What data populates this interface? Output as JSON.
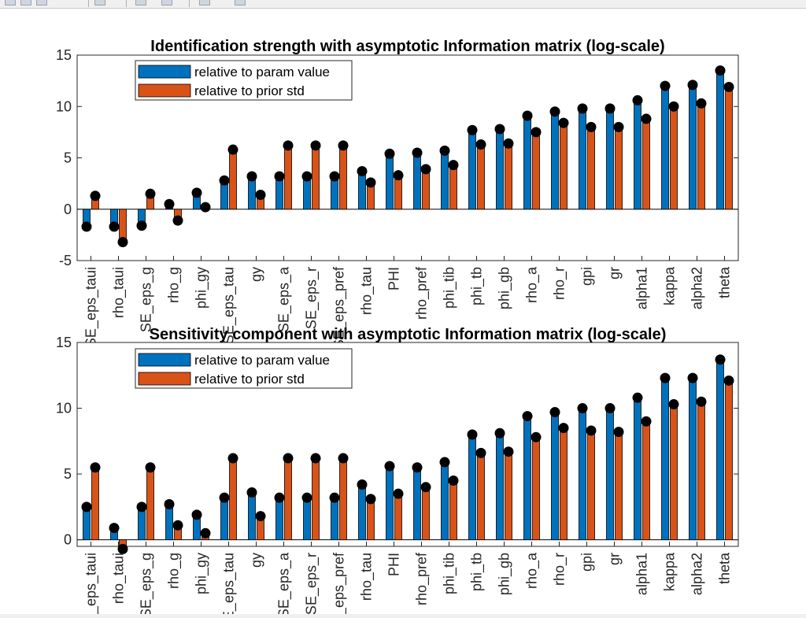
{
  "toolbar": {
    "icons": [
      "zoom-in-icon",
      "zoom-out-icon",
      "pan-icon",
      "data-cursor-icon",
      "brush-icon",
      "insert-legend-icon",
      "arrow-icon",
      "line-icon"
    ]
  },
  "colors": {
    "series1": "#0072BD",
    "series2": "#D95319",
    "marker": "#000000",
    "axes": "#262626"
  },
  "chart_data": [
    {
      "type": "bar",
      "title": "Identification strength with asymptotic Information matrix (log-scale)",
      "xlabel": "",
      "ylabel": "",
      "ylim": [
        -5,
        15
      ],
      "yticks": [
        -5,
        0,
        5,
        10,
        15
      ],
      "legend_position": "top-left",
      "categories": [
        "SE_eps_taui",
        "rho_taui",
        "SE_eps_g",
        "rho_g",
        "phi_gy",
        "SE_eps_tau",
        "gy",
        "SE_eps_a",
        "SE_eps_r",
        "SE_eps_pref",
        "rho_tau",
        "PHI",
        "rho_pref",
        "phi_tib",
        "phi_tb",
        "phi_gb",
        "rho_a",
        "rho_r",
        "gpi",
        "gr",
        "alpha1",
        "kappa",
        "alpha2",
        "theta"
      ],
      "series": [
        {
          "name": "relative to param value",
          "values": [
            -1.7,
            -1.7,
            -1.6,
            0.5,
            1.6,
            2.8,
            3.2,
            3.2,
            3.2,
            3.2,
            3.7,
            5.4,
            5.5,
            5.7,
            7.7,
            7.8,
            9.1,
            9.5,
            9.8,
            9.8,
            10.6,
            12.0,
            12.1,
            13.5
          ]
        },
        {
          "name": "relative to prior std",
          "values": [
            1.3,
            -3.2,
            1.5,
            -1.1,
            0.2,
            5.8,
            1.4,
            6.2,
            6.2,
            6.2,
            2.6,
            3.3,
            3.9,
            4.3,
            6.3,
            6.4,
            7.5,
            8.4,
            8.0,
            8.0,
            8.8,
            10.0,
            10.3,
            11.9
          ]
        }
      ]
    },
    {
      "type": "bar",
      "title": "Sensitivity component with asymptotic Information matrix (log-scale)",
      "xlabel": "",
      "ylabel": "",
      "ylim": [
        -0.5,
        15
      ],
      "yticks": [
        0,
        5,
        10,
        15
      ],
      "legend_position": "top-left",
      "categories": [
        "SE_eps_taui",
        "rho_taui",
        "SE_eps_g",
        "rho_g",
        "phi_gy",
        "SE_eps_tau",
        "gy",
        "SE_eps_a",
        "SE_eps_r",
        "SE_eps_pref",
        "rho_tau",
        "PHI",
        "rho_pref",
        "phi_tib",
        "phi_tb",
        "phi_gb",
        "rho_a",
        "rho_r",
        "gpi",
        "gr",
        "alpha1",
        "kappa",
        "alpha2",
        "theta"
      ],
      "series": [
        {
          "name": "relative to param value",
          "values": [
            2.5,
            0.9,
            2.5,
            2.7,
            1.9,
            3.2,
            3.6,
            3.2,
            3.2,
            3.2,
            4.2,
            5.6,
            5.5,
            5.9,
            8.0,
            8.1,
            9.4,
            9.7,
            10.0,
            10.0,
            10.8,
            12.3,
            12.3,
            13.7
          ]
        },
        {
          "name": "relative to prior std",
          "values": [
            5.5,
            -0.7,
            5.5,
            1.1,
            0.5,
            6.2,
            1.8,
            6.2,
            6.2,
            6.2,
            3.1,
            3.5,
            4.0,
            4.5,
            6.6,
            6.7,
            7.8,
            8.5,
            8.3,
            8.2,
            9.0,
            10.3,
            10.5,
            12.1
          ]
        }
      ]
    }
  ]
}
